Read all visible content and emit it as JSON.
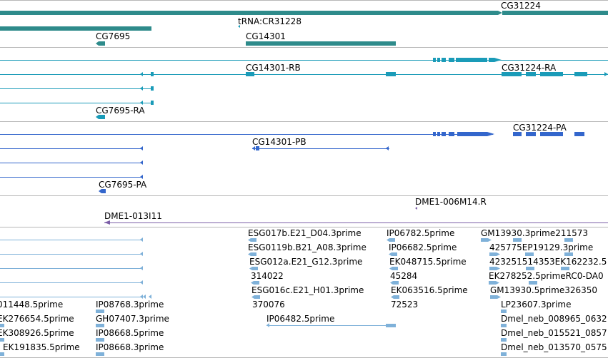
{
  "colors": {
    "gene": "#2e8b8b",
    "mrna": "#1a9bb8",
    "protein": "#3366cc",
    "clone": "#7b5ea7",
    "est": "#7fb1d9",
    "divider": "#b8b8b8"
  },
  "tracks": {
    "gene": {
      "labels": [
        "CG31224",
        "tRNA:CR31228",
        "CG7695",
        "CG14301"
      ]
    },
    "mrna": {
      "labels": [
        "CG14301-RB",
        "CG31224-RA",
        "CG7695-RA"
      ]
    },
    "protein": {
      "labels": [
        "CG31224-PA",
        "CG14301-PB",
        "CG7695-PA"
      ]
    },
    "clone": {
      "labels": [
        "DME1-006M14.R",
        "DME1-013I11"
      ]
    },
    "est": {
      "labels": [
        "ESG017b.E21_D04.3prime",
        "IP06782.5prime",
        "GM13930.3prime211573",
        "ESG0119b.B21_A08.3prime",
        "IP06682.5prime",
        "425775EP19129.3prime",
        "ESG012a.E21_G12.3prime",
        "EK048715.5prime",
        "423251514353EK162232.5",
        "314022",
        "45284",
        "EK278252.5primeRC0-DA0",
        "ESG016c.E21_H01.3prime",
        "EK063516.5prime",
        "GM13930.5prime326350",
        "370076",
        "72523",
        "011448.5prime",
        "IP08768.3prime",
        "LP23607.3prime",
        "IP06482.5prime",
        "EK276654.5prime",
        "GH07407.3prime",
        "Dmel_neb_008965_0632",
        "EK308926.5prime",
        "IP08668.5prime",
        "Dmel_neb_015521_0857",
        "EK191835.5prime",
        "IP08668.3prime",
        "Dmel_neb_013570_0575"
      ]
    }
  }
}
